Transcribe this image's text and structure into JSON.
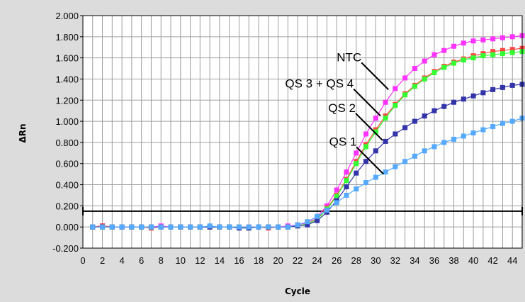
{
  "chart_data": {
    "type": "line",
    "xlabel": "Cycle",
    "ylabel": "ΔRn",
    "xlim": [
      0,
      45
    ],
    "ylim": [
      -0.2,
      2.0
    ],
    "x_ticks": [
      "0",
      "2",
      "4",
      "6",
      "8",
      "10",
      "12",
      "14",
      "16",
      "18",
      "20",
      "22",
      "24",
      "26",
      "28",
      "30",
      "32",
      "34",
      "36",
      "38",
      "40",
      "42",
      "44"
    ],
    "y_ticks": [
      "-0.200",
      "0.000",
      "0.200",
      "0.400",
      "0.600",
      "0.800",
      "1.000",
      "1.200",
      "1.400",
      "1.600",
      "1.800",
      "2.000"
    ],
    "grid": true,
    "threshold": 0.15,
    "x": [
      1,
      2,
      3,
      4,
      5,
      6,
      7,
      8,
      9,
      10,
      11,
      12,
      13,
      14,
      15,
      16,
      17,
      18,
      19,
      20,
      21,
      22,
      23,
      24,
      25,
      26,
      27,
      28,
      29,
      30,
      31,
      32,
      33,
      34,
      35,
      36,
      37,
      38,
      39,
      40,
      41,
      42,
      43,
      44,
      45
    ],
    "series": [
      {
        "color": "#ff33ff",
        "values": [
          0.0,
          0.01,
          0.0,
          0.0,
          0.0,
          0.0,
          0.0,
          0.01,
          0.0,
          0.0,
          0.0,
          0.0,
          0.0,
          0.0,
          0.0,
          0.0,
          0.0,
          0.0,
          0.0,
          0.0,
          0.01,
          0.02,
          0.04,
          0.1,
          0.2,
          0.35,
          0.52,
          0.7,
          0.88,
          1.03,
          1.18,
          1.31,
          1.41,
          1.5,
          1.57,
          1.63,
          1.67,
          1.71,
          1.74,
          1.76,
          1.77,
          1.78,
          1.79,
          1.8,
          1.81
        ]
      },
      {
        "color": "#ff4444",
        "values": [
          0.0,
          0.01,
          0.0,
          0.0,
          0.0,
          0.0,
          -0.01,
          0.0,
          0.0,
          0.0,
          0.0,
          0.0,
          0.0,
          0.0,
          0.0,
          0.0,
          0.0,
          0.0,
          -0.01,
          0.0,
          0.0,
          0.01,
          0.03,
          0.08,
          0.18,
          0.3,
          0.45,
          0.62,
          0.78,
          0.92,
          1.05,
          1.16,
          1.26,
          1.34,
          1.41,
          1.47,
          1.52,
          1.56,
          1.59,
          1.62,
          1.64,
          1.66,
          1.67,
          1.68,
          1.69
        ]
      },
      {
        "color": "#33ff33",
        "values": [
          0.0,
          0.0,
          0.0,
          0.0,
          0.0,
          0.0,
          0.0,
          0.0,
          0.0,
          0.0,
          0.0,
          0.0,
          0.0,
          0.0,
          0.0,
          0.0,
          -0.01,
          0.0,
          0.0,
          0.0,
          0.0,
          0.01,
          0.03,
          0.07,
          0.17,
          0.29,
          0.44,
          0.6,
          0.76,
          0.9,
          1.03,
          1.15,
          1.25,
          1.33,
          1.4,
          1.46,
          1.51,
          1.55,
          1.58,
          1.6,
          1.62,
          1.63,
          1.64,
          1.65,
          1.66
        ]
      },
      {
        "color": "#3333aa",
        "values": [
          0.0,
          0.0,
          0.0,
          0.0,
          0.0,
          0.0,
          0.0,
          0.0,
          0.0,
          0.0,
          0.0,
          0.0,
          0.0,
          0.0,
          0.0,
          -0.01,
          -0.01,
          0.0,
          0.0,
          0.0,
          0.0,
          0.01,
          0.02,
          0.06,
          0.14,
          0.25,
          0.38,
          0.51,
          0.62,
          0.72,
          0.81,
          0.88,
          0.94,
          1.0,
          1.05,
          1.1,
          1.14,
          1.18,
          1.21,
          1.24,
          1.27,
          1.3,
          1.32,
          1.34,
          1.35
        ]
      },
      {
        "color": "#55aaff",
        "values": [
          0.0,
          0.0,
          0.0,
          0.0,
          0.0,
          0.0,
          0.0,
          0.0,
          0.0,
          0.0,
          0.0,
          0.0,
          0.01,
          0.0,
          0.0,
          0.0,
          0.0,
          0.0,
          0.0,
          0.0,
          0.0,
          0.02,
          0.05,
          0.1,
          0.16,
          0.23,
          0.3,
          0.36,
          0.42,
          0.47,
          0.52,
          0.57,
          0.62,
          0.67,
          0.72,
          0.76,
          0.8,
          0.83,
          0.86,
          0.89,
          0.92,
          0.95,
          0.98,
          1.0,
          1.03
        ]
      }
    ],
    "annotations": [
      {
        "text": "NTC",
        "x": 31.3,
        "y": 1.3
      },
      {
        "text": "QS 3 + QS 4",
        "x": 30.5,
        "y": 1.05
      },
      {
        "text": "QS 2",
        "x": 30.7,
        "y": 0.82
      },
      {
        "text": "QS 1",
        "x": 30.8,
        "y": 0.5
      }
    ]
  }
}
